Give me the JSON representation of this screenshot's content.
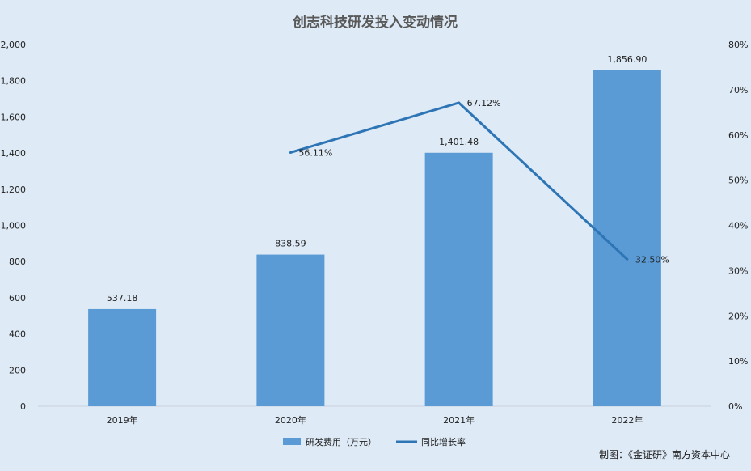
{
  "chart_data": {
    "type": "bar",
    "title": "创志科技研发投入变动情况",
    "categories": [
      "2019年",
      "2020年",
      "2021年",
      "2022年"
    ],
    "series": [
      {
        "name": "研发费用（万元）",
        "type": "bar",
        "axis": "left",
        "values": [
          537.18,
          838.59,
          1401.48,
          1856.9
        ],
        "labels": [
          "537.18",
          "838.59",
          "1,401.48",
          "1,856.90"
        ],
        "color": "#5b9bd5"
      },
      {
        "name": "同比增长率",
        "type": "line",
        "axis": "right",
        "values": [
          null,
          56.11,
          67.12,
          32.5
        ],
        "labels": [
          "",
          "56.11%",
          "67.12%",
          "32.50%"
        ],
        "color": "#2e75b6"
      }
    ],
    "y_left": {
      "lim": [
        0,
        2000
      ],
      "ticks": [
        "0",
        "200",
        "400",
        "600",
        "800",
        "1,000",
        "1,200",
        "1,400",
        "1,600",
        "1,800",
        "2,000"
      ]
    },
    "y_right": {
      "lim": [
        0,
        80
      ],
      "ticks": [
        "0%",
        "10%",
        "20%",
        "30%",
        "40%",
        "50%",
        "60%",
        "70%",
        "80%"
      ]
    },
    "legend_position": "bottom",
    "grid": false
  },
  "source_note": "制图：《金证研》南方资本中心"
}
